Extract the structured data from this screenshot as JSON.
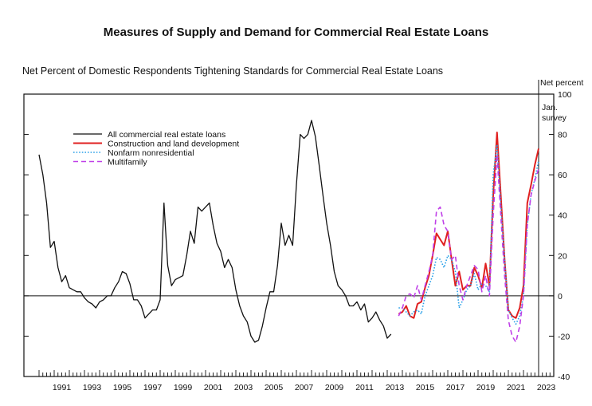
{
  "page": {
    "title": "Measures of Supply and Demand for Commercial Real Estate Loans"
  },
  "chart_data": {
    "type": "line",
    "title": "Net Percent of Domestic Respondents Tightening Standards for Commercial Real Estate Loans",
    "y_unit_label": "Net percent",
    "annotation": [
      "Jan.",
      "survey"
    ],
    "ylim": [
      -40,
      100
    ],
    "yticks": [
      -40,
      -20,
      0,
      20,
      40,
      60,
      80,
      100
    ],
    "xlim": [
      1989.0,
      2024.0
    ],
    "xtick_labels": [
      "1991",
      "1993",
      "1995",
      "1997",
      "1999",
      "2001",
      "2003",
      "2005",
      "2007",
      "2009",
      "2011",
      "2013",
      "2015",
      "2017",
      "2019",
      "2021",
      "2023"
    ],
    "survey_marker_x": 2023.0,
    "legend_position": "upper-left",
    "colors": {
      "all": "#111111",
      "construction": "#e02020",
      "nonfarm": "#2aa0e8",
      "multifamily": "#c040e8"
    },
    "series": [
      {
        "key": "all",
        "name": "All commercial real estate loans",
        "style": "solid",
        "points": [
          [
            1990.0,
            70
          ],
          [
            1990.25,
            60
          ],
          [
            1990.5,
            46
          ],
          [
            1990.75,
            24
          ],
          [
            1991.0,
            27
          ],
          [
            1991.25,
            14
          ],
          [
            1991.5,
            7
          ],
          [
            1991.75,
            10
          ],
          [
            1992.0,
            4
          ],
          [
            1992.25,
            3
          ],
          [
            1992.5,
            2
          ],
          [
            1992.75,
            2
          ],
          [
            1993.0,
            -1
          ],
          [
            1993.25,
            -3
          ],
          [
            1993.5,
            -4
          ],
          [
            1993.75,
            -6
          ],
          [
            1994.0,
            -3
          ],
          [
            1994.25,
            -2
          ],
          [
            1994.5,
            0
          ],
          [
            1994.75,
            0
          ],
          [
            1995.0,
            4
          ],
          [
            1995.25,
            7
          ],
          [
            1995.5,
            12
          ],
          [
            1995.75,
            11
          ],
          [
            1996.0,
            6
          ],
          [
            1996.25,
            -2
          ],
          [
            1996.5,
            -2
          ],
          [
            1996.75,
            -5
          ],
          [
            1997.0,
            -11
          ],
          [
            1997.25,
            -9
          ],
          [
            1997.5,
            -7
          ],
          [
            1997.75,
            -7
          ],
          [
            1998.0,
            -2
          ],
          [
            1998.25,
            46
          ],
          [
            1998.5,
            15
          ],
          [
            1998.75,
            5
          ],
          [
            1999.0,
            8
          ],
          [
            1999.25,
            9
          ],
          [
            1999.5,
            10
          ],
          [
            1999.75,
            20
          ],
          [
            2000.0,
            32
          ],
          [
            2000.25,
            26
          ],
          [
            2000.5,
            44
          ],
          [
            2000.75,
            42
          ],
          [
            2001.0,
            44
          ],
          [
            2001.25,
            46
          ],
          [
            2001.5,
            35
          ],
          [
            2001.75,
            26
          ],
          [
            2002.0,
            22
          ],
          [
            2002.25,
            14
          ],
          [
            2002.5,
            18
          ],
          [
            2002.75,
            14
          ],
          [
            2003.0,
            3
          ],
          [
            2003.25,
            -5
          ],
          [
            2003.5,
            -10
          ],
          [
            2003.75,
            -13
          ],
          [
            2004.0,
            -20
          ],
          [
            2004.25,
            -23
          ],
          [
            2004.5,
            -22
          ],
          [
            2004.75,
            -15
          ],
          [
            2005.0,
            -6
          ],
          [
            2005.25,
            2
          ],
          [
            2005.5,
            2
          ],
          [
            2005.75,
            15
          ],
          [
            2006.0,
            36
          ],
          [
            2006.25,
            25
          ],
          [
            2006.5,
            30
          ],
          [
            2006.75,
            25
          ],
          [
            2007.0,
            55
          ],
          [
            2007.25,
            80
          ],
          [
            2007.5,
            78
          ],
          [
            2007.75,
            80
          ],
          [
            2008.0,
            87
          ],
          [
            2008.25,
            79
          ],
          [
            2008.5,
            65
          ],
          [
            2008.75,
            50
          ],
          [
            2009.0,
            36
          ],
          [
            2009.25,
            25
          ],
          [
            2009.5,
            12
          ],
          [
            2009.75,
            5
          ],
          [
            2010.0,
            3
          ],
          [
            2010.25,
            0
          ],
          [
            2010.5,
            -5
          ],
          [
            2010.75,
            -5
          ],
          [
            2011.0,
            -3
          ],
          [
            2011.25,
            -7
          ],
          [
            2011.5,
            -4
          ],
          [
            2011.75,
            -13
          ],
          [
            2012.0,
            -11
          ],
          [
            2012.25,
            -8
          ],
          [
            2012.5,
            -12
          ],
          [
            2012.75,
            -15
          ],
          [
            2013.0,
            -21
          ],
          [
            2013.25,
            -19
          ]
        ]
      },
      {
        "key": "construction",
        "name": "Construction and land development",
        "style": "solid",
        "points": [
          [
            2013.75,
            -9
          ],
          [
            2014.0,
            -8
          ],
          [
            2014.25,
            -5
          ],
          [
            2014.5,
            -10
          ],
          [
            2014.75,
            -11
          ],
          [
            2015.0,
            -4
          ],
          [
            2015.25,
            -3
          ],
          [
            2015.5,
            4
          ],
          [
            2015.75,
            10
          ],
          [
            2016.0,
            20
          ],
          [
            2016.25,
            31
          ],
          [
            2016.5,
            28
          ],
          [
            2016.75,
            25
          ],
          [
            2017.0,
            32
          ],
          [
            2017.25,
            18
          ],
          [
            2017.5,
            5
          ],
          [
            2017.75,
            12
          ],
          [
            2018.0,
            3
          ],
          [
            2018.25,
            5
          ],
          [
            2018.5,
            5
          ],
          [
            2018.75,
            14
          ],
          [
            2019.0,
            10
          ],
          [
            2019.25,
            4
          ],
          [
            2019.5,
            16
          ],
          [
            2019.75,
            5
          ],
          [
            2020.0,
            50
          ],
          [
            2020.25,
            81
          ],
          [
            2020.5,
            50
          ],
          [
            2020.75,
            18
          ],
          [
            2021.0,
            -7
          ],
          [
            2021.25,
            -10
          ],
          [
            2021.5,
            -11
          ],
          [
            2021.75,
            -6
          ],
          [
            2022.0,
            5
          ],
          [
            2022.25,
            46
          ],
          [
            2022.5,
            55
          ],
          [
            2022.75,
            65
          ],
          [
            2023.0,
            73
          ]
        ]
      },
      {
        "key": "nonfarm",
        "name": "Nonfarm nonresidential",
        "style": "dotted",
        "points": [
          [
            2013.75,
            -6
          ],
          [
            2014.0,
            -6
          ],
          [
            2014.25,
            -8
          ],
          [
            2014.5,
            -10
          ],
          [
            2014.75,
            -8
          ],
          [
            2015.0,
            -7
          ],
          [
            2015.25,
            -9
          ],
          [
            2015.5,
            0
          ],
          [
            2015.75,
            5
          ],
          [
            2016.0,
            10
          ],
          [
            2016.25,
            19
          ],
          [
            2016.5,
            18
          ],
          [
            2016.75,
            14
          ],
          [
            2017.0,
            20
          ],
          [
            2017.25,
            18
          ],
          [
            2017.5,
            12
          ],
          [
            2017.75,
            -6
          ],
          [
            2018.0,
            -2
          ],
          [
            2018.25,
            3
          ],
          [
            2018.5,
            5
          ],
          [
            2018.75,
            11
          ],
          [
            2019.0,
            3
          ],
          [
            2019.25,
            6
          ],
          [
            2019.5,
            5
          ],
          [
            2019.75,
            2
          ],
          [
            2020.0,
            60
          ],
          [
            2020.25,
            75
          ],
          [
            2020.5,
            45
          ],
          [
            2020.75,
            18
          ],
          [
            2021.0,
            -7
          ],
          [
            2021.25,
            -11
          ],
          [
            2021.5,
            -14
          ],
          [
            2021.75,
            -10
          ],
          [
            2022.0,
            0
          ],
          [
            2022.25,
            35
          ],
          [
            2022.5,
            50
          ],
          [
            2022.75,
            58
          ],
          [
            2023.0,
            67
          ]
        ]
      },
      {
        "key": "multifamily",
        "name": "Multifamily",
        "style": "dashed",
        "points": [
          [
            2013.75,
            -10
          ],
          [
            2014.0,
            -6
          ],
          [
            2014.25,
            0
          ],
          [
            2014.5,
            1
          ],
          [
            2014.75,
            -1
          ],
          [
            2015.0,
            5
          ],
          [
            2015.25,
            -2
          ],
          [
            2015.5,
            5
          ],
          [
            2015.75,
            12
          ],
          [
            2016.0,
            20
          ],
          [
            2016.25,
            42
          ],
          [
            2016.5,
            44
          ],
          [
            2016.75,
            35
          ],
          [
            2017.0,
            32
          ],
          [
            2017.25,
            18
          ],
          [
            2017.5,
            20
          ],
          [
            2017.75,
            5
          ],
          [
            2018.0,
            -2
          ],
          [
            2018.25,
            5
          ],
          [
            2018.5,
            10
          ],
          [
            2018.75,
            15
          ],
          [
            2019.0,
            13
          ],
          [
            2019.25,
            2
          ],
          [
            2019.5,
            10
          ],
          [
            2019.75,
            0
          ],
          [
            2020.0,
            40
          ],
          [
            2020.25,
            70
          ],
          [
            2020.5,
            40
          ],
          [
            2020.75,
            10
          ],
          [
            2021.0,
            -12
          ],
          [
            2021.25,
            -20
          ],
          [
            2021.5,
            -23
          ],
          [
            2021.75,
            -15
          ],
          [
            2022.0,
            0
          ],
          [
            2022.25,
            35
          ],
          [
            2022.5,
            50
          ],
          [
            2022.75,
            57
          ],
          [
            2023.0,
            63
          ]
        ]
      }
    ]
  }
}
